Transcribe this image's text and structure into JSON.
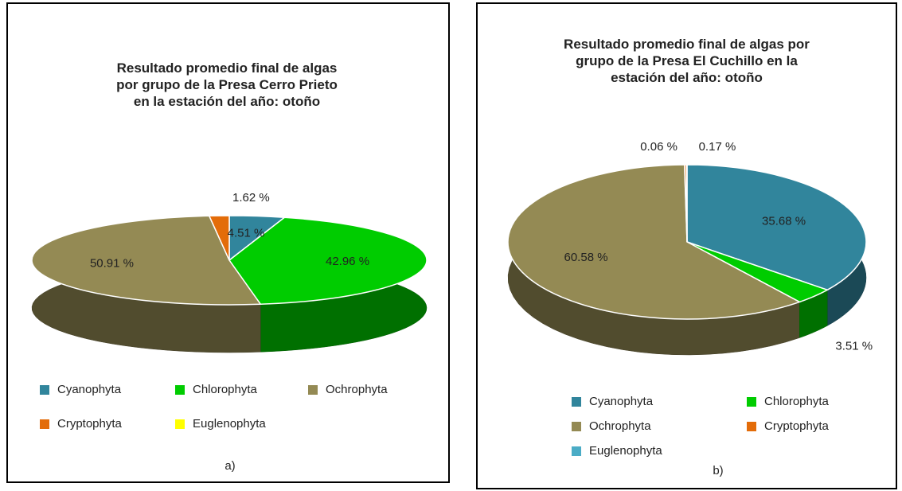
{
  "chart_data": [
    {
      "type": "pie",
      "title": "Resultado promedio final de algas por grupo  de la Presa Cerro Prieto en la estación del año:  otoño",
      "categories": [
        "Cyanophyta",
        "Chlorophyta",
        "Ochrophyta",
        "Cryptophyta",
        "Euglenophyta"
      ],
      "values": [
        4.51,
        42.96,
        50.91,
        1.62,
        0
      ],
      "value_labels": [
        "4.51 %",
        "42.96 %",
        "50.91 %",
        "1.62 %",
        null
      ],
      "colors": [
        "#31859c",
        "#00cc00",
        "#948a54",
        "#e36c09",
        "#ffff00"
      ],
      "caption": "a)"
    },
    {
      "type": "pie",
      "title": "Resultado promedio final de algas por grupo de la Presa El Cuchillo en la estación del año: otoño",
      "categories": [
        "Cyanophyta",
        "Chlorophyta",
        "Ochrophyta",
        "Cryptophyta",
        "Euglenophyta"
      ],
      "values": [
        35.68,
        3.51,
        60.58,
        0.17,
        0.06
      ],
      "value_labels": [
        "35.68 %",
        "3.51 %",
        "60.58 %",
        "0.17 %",
        "0.06 %"
      ],
      "colors": [
        "#31859c",
        "#00cc00",
        "#948a54",
        "#e36c09",
        "#4bacc6"
      ],
      "caption": "b)"
    }
  ]
}
